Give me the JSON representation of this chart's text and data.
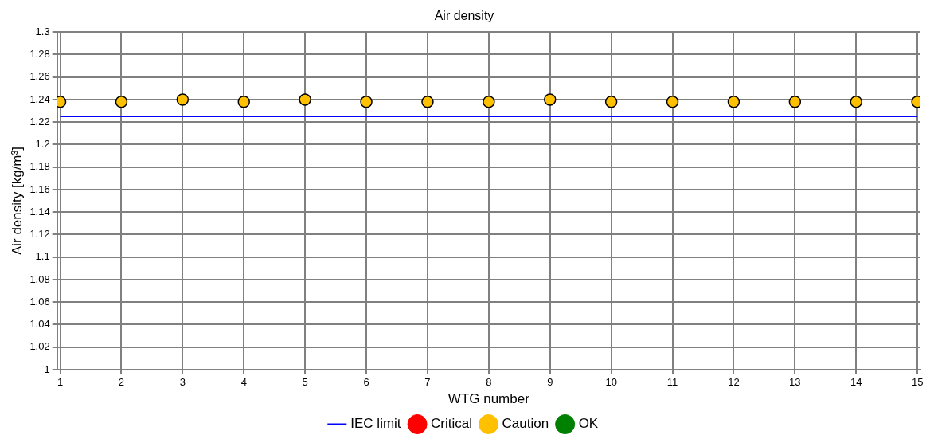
{
  "chart_data": {
    "type": "scatter",
    "title": "Air density",
    "xlabel": "WTG number",
    "ylabel": "Air density [kg/m³]",
    "x": [
      1,
      2,
      3,
      4,
      5,
      6,
      7,
      8,
      9,
      10,
      11,
      12,
      13,
      14,
      15
    ],
    "xlim": [
      0.95,
      15.05
    ],
    "xticks": [
      1,
      2,
      3,
      4,
      5,
      6,
      7,
      8,
      9,
      10,
      11,
      12,
      13,
      14,
      15
    ],
    "ylim": [
      1,
      1.3
    ],
    "yticks": [
      1,
      1.02,
      1.04,
      1.06,
      1.08,
      1.1,
      1.12,
      1.14,
      1.16,
      1.18,
      1.2,
      1.22,
      1.24,
      1.26,
      1.28,
      1.3
    ],
    "series": [
      {
        "name": "IEC limit",
        "type": "line",
        "color": "#0000ff",
        "x": [
          1,
          15
        ],
        "values": [
          1.225,
          1.225
        ],
        "marker": "none"
      },
      {
        "name": "Critical",
        "color": "#ff0000",
        "values": [
          null,
          null,
          null,
          null,
          null,
          null,
          null,
          null,
          null,
          null,
          null,
          null,
          null,
          null,
          null
        ]
      },
      {
        "name": "Caution",
        "color": "#ffc000",
        "values": [
          1.238,
          1.238,
          1.24,
          1.238,
          1.24,
          1.238,
          1.238,
          1.238,
          1.24,
          1.238,
          1.238,
          1.238,
          1.238,
          1.238,
          1.238
        ]
      },
      {
        "name": "OK",
        "color": "#008000",
        "values": [
          null,
          null,
          null,
          null,
          null,
          null,
          null,
          null,
          null,
          null,
          null,
          null,
          null,
          null,
          null
        ]
      }
    ],
    "grid": true,
    "legend": "bottom",
    "marker": "circle"
  }
}
